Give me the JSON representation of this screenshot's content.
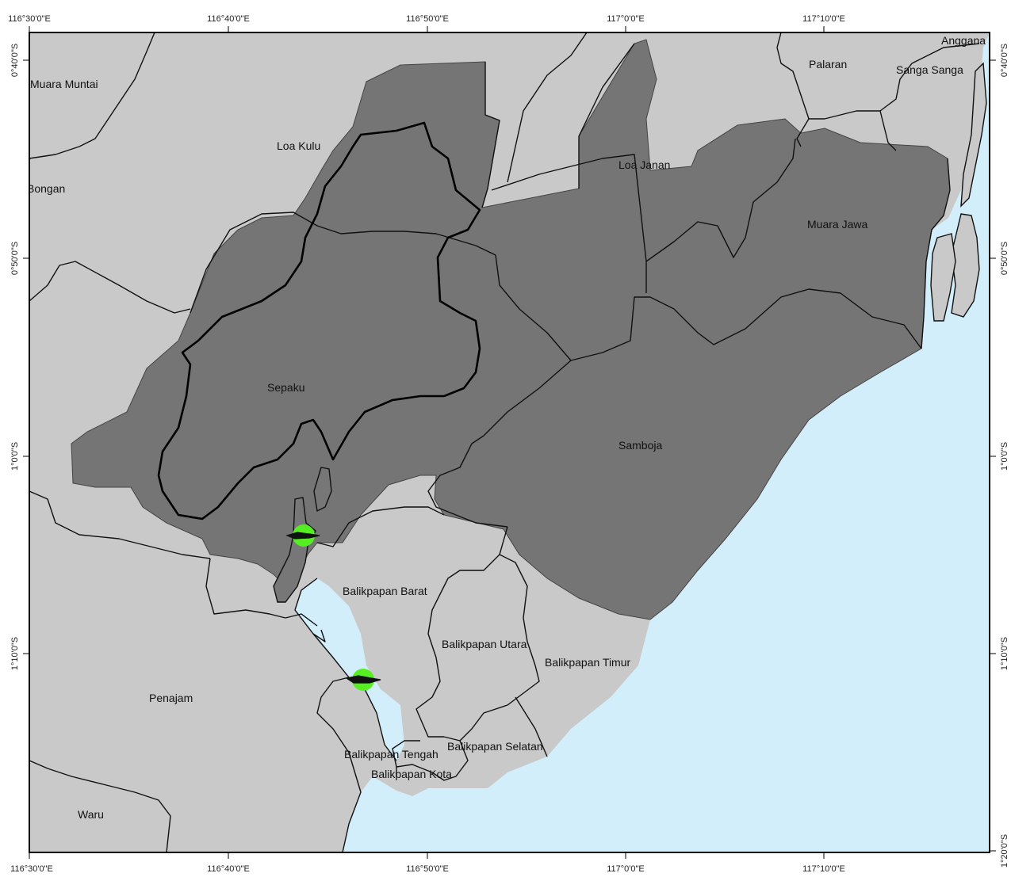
{
  "map": {
    "colors": {
      "land": "#c9c9c9",
      "sea": "#d3eefb",
      "study_area": "#6e6e6e",
      "marker": "#55ee22",
      "boundary": "#111111"
    },
    "longitude_ticks": {
      "top": [
        "116°30'0\"E",
        "116°40'0\"E",
        "116°50'0\"E",
        "117°0'0\"E",
        "117°10'0\"E"
      ],
      "bottom": [
        "116°30'0\"E",
        "116°40'0\"E",
        "116°50'0\"E",
        "117°0'0\"E",
        "117°10'0\"E"
      ]
    },
    "latitude_ticks": {
      "left": [
        "0°40'0\"S",
        "0°50'0\"S",
        "1°0'0\"S",
        "1°10'0\"S"
      ],
      "right": [
        "0°40'0\"S",
        "0°50'0\"S",
        "1°0'0\"S",
        "1°10'0\"S",
        "1°20'0\"S"
      ]
    },
    "places": [
      "Muara Muntai",
      "Loa Kulu",
      "Bongan",
      "Loa Janan",
      "Palaran",
      "Sanga Sanga",
      "Anggana",
      "Muara Jawa",
      "Sepaku",
      "Samboja",
      "Balikpapan Barat",
      "Balikpapan Utara",
      "Balikpapan Timur",
      "Penajam",
      "Balikpapan Tengah",
      "Balikpapan Selatan",
      "Balikpapan Kota",
      "Waru"
    ],
    "markers": [
      "site-marker-north",
      "site-marker-south"
    ]
  }
}
